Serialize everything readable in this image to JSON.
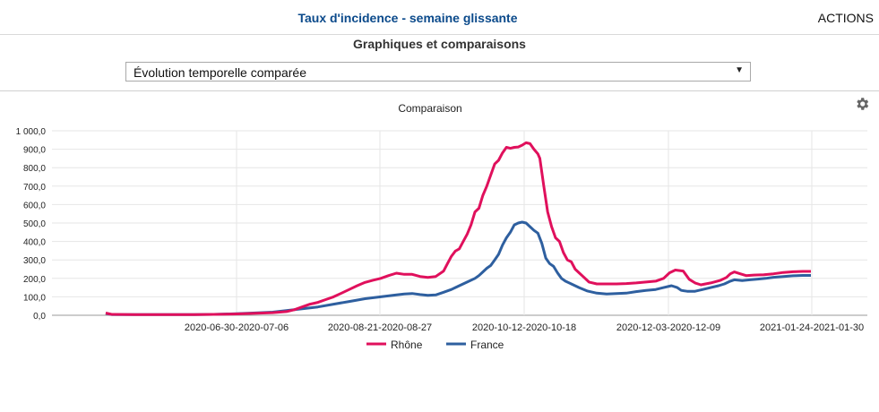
{
  "header": {
    "title": "Taux d'incidence - semaine glissante",
    "actions_label": "ACTIONS"
  },
  "section": {
    "title": "Graphiques et comparaisons"
  },
  "selector": {
    "value": "Évolution temporelle comparée"
  },
  "chart_panel": {
    "settings_icon": "gear-icon"
  },
  "colors": {
    "rhone": "#e0105c",
    "france": "#2e5f9f",
    "header_title": "#0b4a8b"
  },
  "chart_data": {
    "type": "line",
    "title": "Comparaison",
    "ylim": [
      0,
      1000
    ],
    "y_ticks": [
      "0,0",
      "100,0",
      "200,0",
      "300,0",
      "400,0",
      "500,0",
      "600,0",
      "700,0",
      "800,0",
      "900,0",
      "1 000,0"
    ],
    "x_tick_labels": [
      "2020-06-30-2020-07-06",
      "2020-08-21-2020-08-27",
      "2020-10-12-2020-10-18",
      "2020-12-03-2020-12-09",
      "2021-01-24-2021-01-30"
    ],
    "grid": true,
    "legend": "bottom",
    "series": [
      {
        "name": "Rhône",
        "color": "#e0105c",
        "points": [
          [
            0,
            12
          ],
          [
            3,
            5
          ],
          [
            15,
            4
          ],
          [
            30,
            4
          ],
          [
            45,
            4
          ],
          [
            55,
            5
          ],
          [
            65,
            7
          ],
          [
            75,
            10
          ],
          [
            85,
            14
          ],
          [
            92,
            20
          ],
          [
            96,
            30
          ],
          [
            100,
            45
          ],
          [
            104,
            60
          ],
          [
            108,
            70
          ],
          [
            112,
            85
          ],
          [
            116,
            100
          ],
          [
            120,
            120
          ],
          [
            124,
            140
          ],
          [
            128,
            160
          ],
          [
            132,
            178
          ],
          [
            136,
            190
          ],
          [
            140,
            200
          ],
          [
            144,
            215
          ],
          [
            148,
            228
          ],
          [
            152,
            222
          ],
          [
            156,
            222
          ],
          [
            160,
            210
          ],
          [
            164,
            205
          ],
          [
            168,
            210
          ],
          [
            172,
            240
          ],
          [
            174,
            280
          ],
          [
            176,
            320
          ],
          [
            178,
            348
          ],
          [
            180,
            360
          ],
          [
            182,
            400
          ],
          [
            184,
            440
          ],
          [
            186,
            490
          ],
          [
            188,
            560
          ],
          [
            190,
            580
          ],
          [
            192,
            650
          ],
          [
            194,
            700
          ],
          [
            196,
            760
          ],
          [
            198,
            820
          ],
          [
            200,
            840
          ],
          [
            202,
            880
          ],
          [
            204,
            910
          ],
          [
            206,
            905
          ],
          [
            208,
            910
          ],
          [
            210,
            912
          ],
          [
            212,
            922
          ],
          [
            214,
            935
          ],
          [
            216,
            930
          ],
          [
            218,
            900
          ],
          [
            220,
            875
          ],
          [
            221,
            850
          ],
          [
            223,
            700
          ],
          [
            225,
            560
          ],
          [
            227,
            480
          ],
          [
            229,
            420
          ],
          [
            231,
            400
          ],
          [
            233,
            340
          ],
          [
            235,
            300
          ],
          [
            237,
            290
          ],
          [
            239,
            250
          ],
          [
            241,
            230
          ],
          [
            243,
            210
          ],
          [
            246,
            180
          ],
          [
            250,
            170
          ],
          [
            255,
            170
          ],
          [
            260,
            170
          ],
          [
            265,
            172
          ],
          [
            270,
            175
          ],
          [
            275,
            180
          ],
          [
            280,
            185
          ],
          [
            284,
            200
          ],
          [
            287,
            230
          ],
          [
            290,
            245
          ],
          [
            294,
            240
          ],
          [
            297,
            195
          ],
          [
            300,
            175
          ],
          [
            303,
            165
          ],
          [
            308,
            175
          ],
          [
            313,
            190
          ],
          [
            316,
            205
          ],
          [
            318,
            225
          ],
          [
            320,
            235
          ],
          [
            323,
            225
          ],
          [
            326,
            215
          ],
          [
            330,
            218
          ],
          [
            335,
            220
          ],
          [
            340,
            225
          ],
          [
            345,
            232
          ],
          [
            350,
            236
          ],
          [
            355,
            238
          ],
          [
            359,
            238
          ]
        ]
      },
      {
        "name": "France",
        "color": "#2e5f9f",
        "points": [
          [
            0,
            10
          ],
          [
            3,
            4
          ],
          [
            15,
            4
          ],
          [
            30,
            4
          ],
          [
            45,
            4
          ],
          [
            55,
            5
          ],
          [
            65,
            8
          ],
          [
            75,
            12
          ],
          [
            85,
            17
          ],
          [
            92,
            25
          ],
          [
            100,
            35
          ],
          [
            108,
            45
          ],
          [
            116,
            60
          ],
          [
            124,
            75
          ],
          [
            132,
            90
          ],
          [
            140,
            100
          ],
          [
            148,
            110
          ],
          [
            152,
            115
          ],
          [
            156,
            118
          ],
          [
            160,
            112
          ],
          [
            164,
            108
          ],
          [
            168,
            110
          ],
          [
            172,
            125
          ],
          [
            176,
            140
          ],
          [
            180,
            160
          ],
          [
            184,
            180
          ],
          [
            188,
            200
          ],
          [
            190,
            215
          ],
          [
            192,
            235
          ],
          [
            194,
            255
          ],
          [
            196,
            270
          ],
          [
            198,
            300
          ],
          [
            200,
            330
          ],
          [
            202,
            380
          ],
          [
            204,
            420
          ],
          [
            206,
            450
          ],
          [
            208,
            490
          ],
          [
            210,
            500
          ],
          [
            212,
            505
          ],
          [
            214,
            500
          ],
          [
            216,
            480
          ],
          [
            218,
            460
          ],
          [
            220,
            445
          ],
          [
            222,
            390
          ],
          [
            224,
            310
          ],
          [
            226,
            280
          ],
          [
            228,
            265
          ],
          [
            230,
            230
          ],
          [
            232,
            200
          ],
          [
            234,
            185
          ],
          [
            237,
            170
          ],
          [
            241,
            150
          ],
          [
            245,
            132
          ],
          [
            250,
            120
          ],
          [
            255,
            115
          ],
          [
            260,
            118
          ],
          [
            265,
            120
          ],
          [
            270,
            128
          ],
          [
            275,
            135
          ],
          [
            280,
            140
          ],
          [
            284,
            150
          ],
          [
            288,
            160
          ],
          [
            291,
            150
          ],
          [
            293,
            135
          ],
          [
            296,
            130
          ],
          [
            300,
            130
          ],
          [
            304,
            140
          ],
          [
            308,
            150
          ],
          [
            312,
            160
          ],
          [
            315,
            170
          ],
          [
            318,
            185
          ],
          [
            320,
            192
          ],
          [
            324,
            188
          ],
          [
            328,
            192
          ],
          [
            332,
            196
          ],
          [
            336,
            200
          ],
          [
            340,
            206
          ],
          [
            345,
            210
          ],
          [
            350,
            214
          ],
          [
            355,
            216
          ],
          [
            359,
            216
          ]
        ]
      }
    ]
  }
}
